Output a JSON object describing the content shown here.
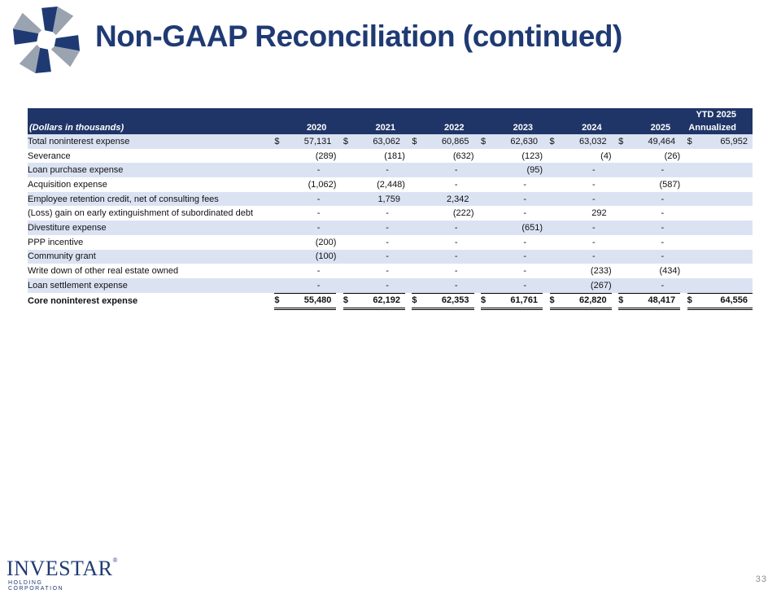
{
  "title": "Non-GAAP Reconciliation (continued)",
  "table": {
    "header_row1_last": "YTD 2025",
    "label_header": "(Dollars in thousands)",
    "columns": [
      "2020",
      "2021",
      "2022",
      "2023",
      "2024",
      "2025",
      "Annualized"
    ],
    "rows": [
      {
        "label": "Total noninterest expense",
        "cells": [
          "$|57,131",
          "$|63,062",
          "$|60,865",
          "$|62,630",
          "$|63,032",
          "$|49,464",
          "$|65,952"
        ]
      },
      {
        "label": "Severance",
        "cells": [
          "(289)",
          "(181)",
          "(632)",
          "(123)",
          "(4)",
          "(26)",
          ""
        ]
      },
      {
        "label": "Loan purchase expense",
        "cells": [
          "-",
          "-",
          "-",
          "(95)",
          "-",
          "-",
          ""
        ]
      },
      {
        "label": "Acquisition expense",
        "cells": [
          "(1,062)",
          "(2,448)",
          "-",
          "-",
          "-",
          "(587)",
          ""
        ]
      },
      {
        "label": "Employee retention credit, net of consulting fees",
        "cells": [
          "-",
          "1,759",
          "2,342",
          "-",
          "-",
          "-",
          ""
        ]
      },
      {
        "label": "(Loss) gain on early extinguishment of subordinated debt",
        "cells": [
          "-",
          "-",
          "(222)",
          "-",
          "292",
          "-",
          ""
        ]
      },
      {
        "label": "Divestiture expense",
        "cells": [
          "-",
          "-",
          "-",
          "(651)",
          "-",
          "-",
          ""
        ]
      },
      {
        "label": "PPP incentive",
        "cells": [
          "(200)",
          "-",
          "-",
          "-",
          "-",
          "-",
          ""
        ]
      },
      {
        "label": "Community grant",
        "cells": [
          "(100)",
          "-",
          "-",
          "-",
          "-",
          "-",
          ""
        ]
      },
      {
        "label": "Write down of other real estate owned",
        "cells": [
          "-",
          "-",
          "-",
          "-",
          "(233)",
          "(434)",
          ""
        ]
      },
      {
        "label": "Loan settlement expense",
        "cells": [
          "-",
          "-",
          "-",
          "-",
          "(267)",
          "-",
          ""
        ]
      },
      {
        "label": "Core noninterest expense",
        "cells": [
          "$|55,480",
          "$|62,192",
          "$|62,353",
          "$|61,761",
          "$|62,820",
          "$|48,417",
          "$|64,556"
        ]
      }
    ]
  },
  "footer": {
    "brand": "INVESTAR",
    "brand_mark": "®",
    "brand_sub": "HOLDING CORPORATION",
    "page_number": "33"
  },
  "colors": {
    "title": "#1f3a73",
    "header_bg": "#1f3567",
    "row_shade": "#dbe3f3"
  }
}
